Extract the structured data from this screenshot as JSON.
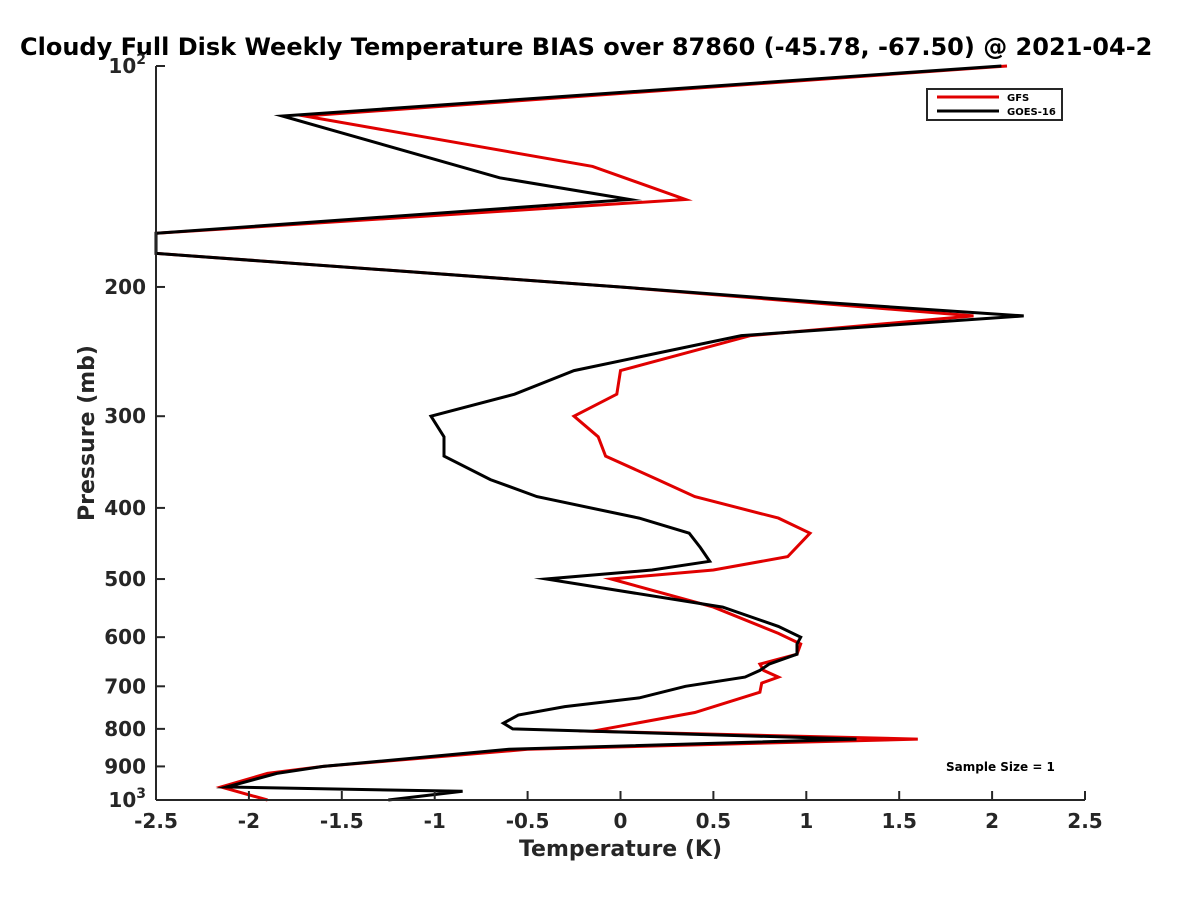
{
  "chart_data": {
    "type": "line",
    "title": "Cloudy Full Disk Weekly Temperature BIAS over 87860 (-45.78, -67.50) @ 2021-04-2",
    "xlabel": "Temperature (K)",
    "ylabel": "Pressure (mb)",
    "xlim": [
      -2.5,
      2.5
    ],
    "ylim": [
      100,
      1000
    ],
    "y_scale": "log",
    "y_reversed": true,
    "grid": false,
    "legend_position": "top-right",
    "x_ticks": [
      "-2.5",
      "-2",
      "-1.5",
      "-1",
      "-0.5",
      "0",
      "0.5",
      "1",
      "1.5",
      "2",
      "2.5"
    ],
    "y_ticks": [
      {
        "base": "10",
        "exp": "2"
      },
      {
        "base": "200",
        "exp": ""
      },
      {
        "base": "300",
        "exp": ""
      },
      {
        "base": "400",
        "exp": ""
      },
      {
        "base": "500",
        "exp": ""
      },
      {
        "base": "600",
        "exp": ""
      },
      {
        "base": "700",
        "exp": ""
      },
      {
        "base": "800",
        "exp": ""
      },
      {
        "base": "900",
        "exp": ""
      },
      {
        "base": "10",
        "exp": "3"
      }
    ],
    "annotation": "Sample Size = 1",
    "series": [
      {
        "name": "GFS",
        "color": "#e00000",
        "points": [
          [
            2.08,
            100
          ],
          [
            -1.7,
            117
          ],
          [
            -0.15,
            137
          ],
          [
            0.35,
            152
          ],
          [
            -2.5,
            169
          ],
          [
            -2.5,
            180
          ],
          [
            0.0,
            200
          ],
          [
            1.9,
            219
          ],
          [
            0.7,
            233
          ],
          [
            0.0,
            260
          ],
          [
            -0.02,
            280
          ],
          [
            -0.25,
            300
          ],
          [
            -0.12,
            320
          ],
          [
            -0.08,
            340
          ],
          [
            0.2,
            366
          ],
          [
            0.4,
            386
          ],
          [
            0.85,
            413
          ],
          [
            1.02,
            433
          ],
          [
            0.9,
            466
          ],
          [
            0.5,
            486
          ],
          [
            -0.05,
            500
          ],
          [
            0.5,
            546
          ],
          [
            0.85,
            593
          ],
          [
            0.97,
            613
          ],
          [
            0.95,
            633
          ],
          [
            0.75,
            653
          ],
          [
            0.77,
            666
          ],
          [
            0.85,
            680
          ],
          [
            0.76,
            693
          ],
          [
            0.75,
            713
          ],
          [
            0.4,
            760
          ],
          [
            -0.15,
            806
          ],
          [
            1.6,
            826
          ],
          [
            -0.5,
            853
          ],
          [
            -1.6,
            900
          ],
          [
            -1.9,
            920
          ],
          [
            -2.15,
            960
          ],
          [
            -1.9,
            1000
          ]
        ]
      },
      {
        "name": "GOES-16",
        "color": "#000000",
        "points": [
          [
            2.05,
            100
          ],
          [
            -1.82,
            117
          ],
          [
            -0.65,
            142
          ],
          [
            0.05,
            152
          ],
          [
            -2.5,
            169
          ],
          [
            -2.5,
            180
          ],
          [
            0.0,
            200
          ],
          [
            1.1,
            210
          ],
          [
            2.17,
            219
          ],
          [
            0.65,
            233
          ],
          [
            -0.25,
            260
          ],
          [
            -0.57,
            280
          ],
          [
            -1.02,
            300
          ],
          [
            -0.95,
            320
          ],
          [
            -0.95,
            340
          ],
          [
            -0.7,
            366
          ],
          [
            -0.45,
            386
          ],
          [
            0.1,
            413
          ],
          [
            0.37,
            433
          ],
          [
            0.43,
            453
          ],
          [
            0.48,
            473
          ],
          [
            0.17,
            486
          ],
          [
            -0.4,
            500
          ],
          [
            0.55,
            546
          ],
          [
            0.85,
            580
          ],
          [
            0.97,
            600
          ],
          [
            0.95,
            613
          ],
          [
            0.95,
            633
          ],
          [
            0.8,
            653
          ],
          [
            0.75,
            666
          ],
          [
            0.67,
            680
          ],
          [
            0.35,
            700
          ],
          [
            0.1,
            726
          ],
          [
            -0.3,
            746
          ],
          [
            -0.55,
            766
          ],
          [
            -0.63,
            786
          ],
          [
            -0.58,
            800
          ],
          [
            1.27,
            826
          ],
          [
            -0.6,
            853
          ],
          [
            -1.6,
            900
          ],
          [
            -1.85,
            920
          ],
          [
            -2.12,
            960
          ],
          [
            -0.85,
            973
          ],
          [
            -1.25,
            1000
          ]
        ]
      }
    ]
  }
}
